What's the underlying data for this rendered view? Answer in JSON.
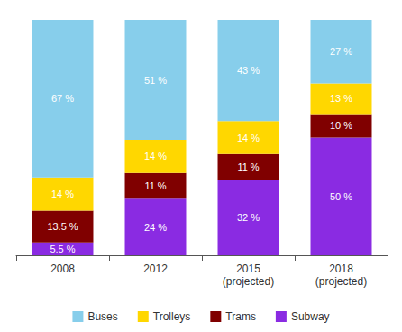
{
  "chart_data": {
    "type": "bar",
    "stacked": true,
    "data_labels": true,
    "tick_labels": "x",
    "grid": false,
    "legend": "bottom",
    "categories": [
      "2008",
      "2012",
      "2015\n(projected)",
      "2018\n(projected)"
    ],
    "ylim": [
      0,
      100
    ],
    "series": [
      {
        "name": "Buses",
        "color": "#87CEEB",
        "values": [
          67,
          51,
          43,
          27
        ],
        "value_labels": [
          "67 %",
          "51 %",
          "43 %",
          "27 %"
        ]
      },
      {
        "name": "Trolleys",
        "color": "#FFD700",
        "values": [
          14,
          14,
          14,
          13
        ],
        "value_labels": [
          "14 %",
          "14 %",
          "14 %",
          "13 %"
        ]
      },
      {
        "name": "Trams",
        "color": "#800000",
        "values": [
          13.5,
          11,
          11,
          10
        ],
        "value_labels": [
          "13.5 %",
          "11 %",
          "11 %",
          "10 %"
        ]
      },
      {
        "name": "Subway",
        "color": "#8A2BE2",
        "values": [
          5.5,
          24,
          32,
          50
        ],
        "value_labels": [
          "5.5 %",
          "24 %",
          "32 %",
          "50 %"
        ]
      }
    ]
  }
}
